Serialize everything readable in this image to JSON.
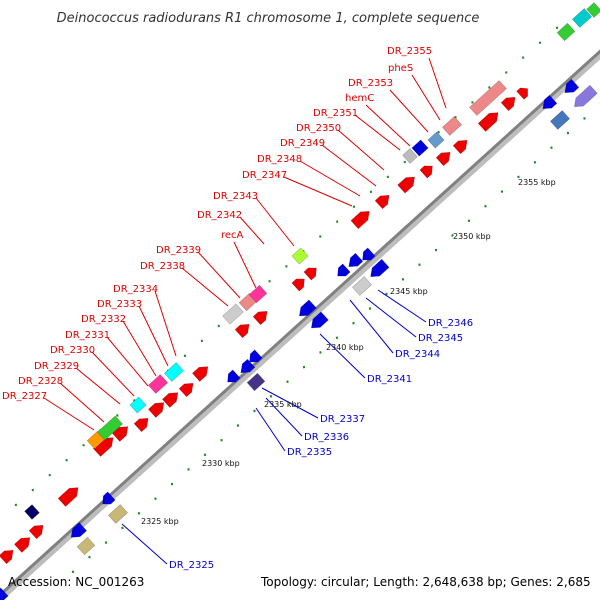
{
  "title": "Deinococcus radiodurans R1 chromosome 1, complete sequence",
  "accession": "Accession: NC_001263",
  "topology": "Topology: circular; Length: 2,648,638 bp; Genes: 2,685",
  "colors": {
    "forward_label": "#dd0000",
    "reverse_label": "#0000cc",
    "backbone": "#808080",
    "ticks": "#228b22"
  },
  "scale_labels": [
    "2325 kbp",
    "2330 kbp",
    "2335 kbp",
    "2340 kbp",
    "2345 kbp",
    "2350 kbp",
    "2355 kbp"
  ],
  "forward_gene_labels": [
    "DR_2327",
    "DR_2328",
    "DR_2329",
    "DR_2330",
    "DR_2331",
    "DR_2332",
    "DR_2333",
    "DR_2334",
    "DR_2338",
    "DR_2339",
    "recA",
    "DR_2342",
    "DR_2343",
    "DR_2347",
    "DR_2348",
    "DR_2349",
    "DR_2350",
    "DR_2351",
    "hemC",
    "DR_2353",
    "pheS",
    "DR_2355"
  ],
  "reverse_gene_labels": [
    "DR_2325",
    "DR_2335",
    "DR_2336",
    "DR_2337",
    "DR_2341",
    "DR_2344",
    "DR_2345",
    "DR_2346"
  ]
}
